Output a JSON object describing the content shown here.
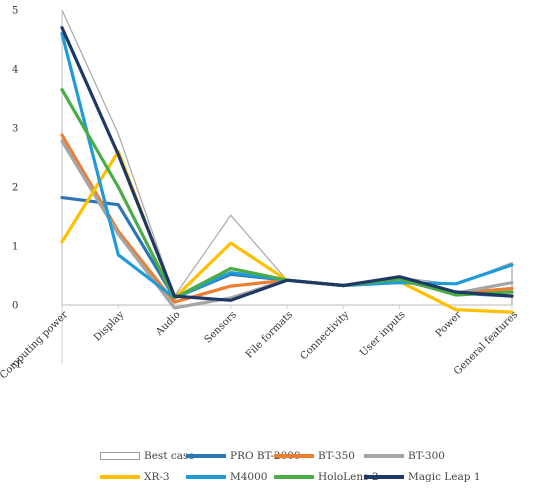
{
  "chart_data": {
    "type": "line",
    "categories": [
      "Computing power",
      "Display",
      "Audio",
      "Sensors",
      "File formats",
      "Connectivity",
      "User inputs",
      "Power",
      "General features"
    ],
    "ylim": [
      -1,
      5
    ],
    "yticks": [
      -1,
      0,
      1,
      2,
      3,
      4,
      5
    ],
    "grid": false,
    "legend_position": "bottom",
    "series": [
      {
        "name": "Best case",
        "style": "area-outline",
        "color": "#a8a8a8",
        "values": [
          5.0,
          2.9,
          0.15,
          1.52,
          0.42,
          0.33,
          0.47,
          0.35,
          0.72
        ]
      },
      {
        "name": "PRO BT-2000",
        "color": "#2e75b6",
        "values": [
          1.82,
          1.7,
          0.12,
          0.52,
          0.42,
          0.33,
          0.42,
          0.2,
          0.15
        ]
      },
      {
        "name": "BT-350",
        "color": "#ed7d31",
        "values": [
          2.88,
          1.25,
          0.05,
          0.32,
          0.42,
          0.33,
          0.42,
          0.2,
          0.28
        ]
      },
      {
        "name": "BT-300",
        "color": "#a5a5a5",
        "values": [
          2.78,
          1.2,
          -0.05,
          0.12,
          0.42,
          0.33,
          0.42,
          0.2,
          0.38
        ]
      },
      {
        "name": "XR-3",
        "color": "#ffc000",
        "values": [
          1.07,
          2.6,
          0.12,
          1.05,
          0.42,
          0.33,
          0.4,
          -0.08,
          -0.12
        ]
      },
      {
        "name": "M4000",
        "color": "#1f9bd7",
        "values": [
          4.6,
          0.85,
          0.12,
          0.55,
          0.42,
          0.33,
          0.38,
          0.36,
          0.68
        ]
      },
      {
        "name": "HoloLens 2",
        "color": "#4aac47",
        "values": [
          3.65,
          2.0,
          0.12,
          0.62,
          0.42,
          0.33,
          0.44,
          0.17,
          0.22
        ]
      },
      {
        "name": "Magic Leap 1",
        "color": "#1f3864",
        "values": [
          4.7,
          2.55,
          0.15,
          0.08,
          0.42,
          0.33,
          0.48,
          0.22,
          0.15
        ]
      }
    ]
  }
}
